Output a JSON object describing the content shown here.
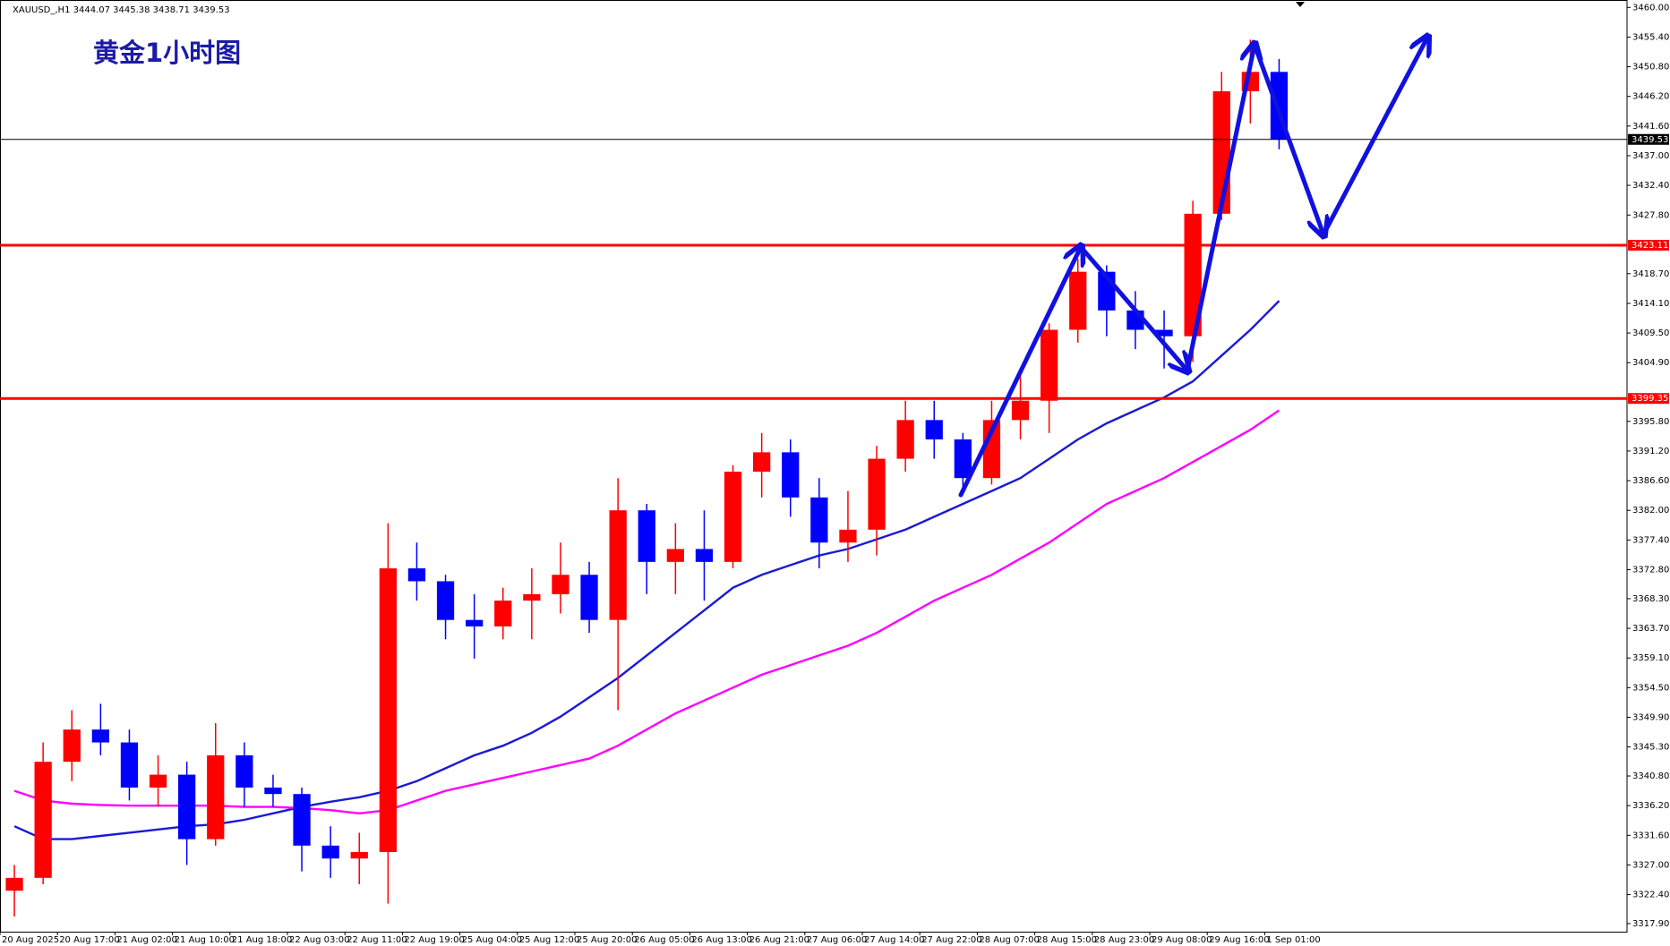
{
  "chart_data": {
    "type": "candlestick",
    "header": "XAUUSD_,H1  3444.07 3445.38 3438.71 3439.53",
    "title": "黄金1小时图",
    "categories": [
      "20 Aug 2025",
      null,
      "20 Aug 17:00",
      null,
      "21 Aug 02:00",
      null,
      "21 Aug 10:00",
      null,
      "21 Aug 18:00",
      null,
      "22 Aug 03:00",
      null,
      "22 Aug 11:00",
      null,
      "22 Aug 19:00",
      null,
      "25 Aug 04:00",
      null,
      "25 Aug 12:00",
      null,
      "25 Aug 20:00",
      null,
      "26 Aug 05:00",
      null,
      "26 Aug 13:00",
      null,
      "26 Aug 21:00",
      null,
      "27 Aug 06:00",
      null,
      "27 Aug 14:00",
      null,
      "27 Aug 22:00",
      null,
      "28 Aug 07:00",
      null,
      "28 Aug 15:00",
      null,
      "28 Aug 23:00",
      null,
      "29 Aug 08:00",
      null,
      "29 Aug 16:00",
      null,
      "1 Sep 01:00"
    ],
    "open": [
      3323,
      3325,
      3343,
      3348,
      3346,
      3339,
      3341,
      3331,
      3344,
      3339,
      3338,
      3330,
      3328,
      3329,
      3373,
      3371,
      3365,
      3364,
      3368,
      3369,
      3372,
      3365,
      3382,
      3374,
      3376,
      3374,
      3388,
      3391,
      3384,
      3377,
      3379,
      3390,
      3396,
      3393,
      3387,
      3396,
      3399,
      3410,
      3419,
      3413,
      3410,
      3409,
      3428,
      3447,
      3450
    ],
    "high": [
      3327,
      3346,
      3351,
      3352,
      3348,
      3344,
      3343,
      3349,
      3346,
      3341,
      3339,
      3333,
      3332,
      3380,
      3377,
      3372,
      3369,
      3370,
      3373,
      3377,
      3374,
      3387,
      3383,
      3380,
      3382,
      3389,
      3394,
      3393,
      3387,
      3385,
      3392,
      3399,
      3399,
      3394,
      3399,
      3404,
      3411,
      3421,
      3420,
      3416,
      3413,
      3430,
      3450,
      3455,
      3452
    ],
    "low": [
      3319,
      3324,
      3340,
      3344,
      3337,
      3336,
      3327,
      3330,
      3336,
      3336,
      3326,
      3325,
      3324,
      3321,
      3368,
      3362,
      3359,
      3362,
      3362,
      3366,
      3363,
      3351,
      3369,
      3369,
      3368,
      3373,
      3384,
      3381,
      3373,
      3374,
      3375,
      3388,
      3390,
      3385,
      3386,
      3393,
      3394,
      3408,
      3409,
      3407,
      3404,
      3405,
      3427,
      3442,
      3438
    ],
    "close": [
      3325,
      3343,
      3348,
      3346,
      3339,
      3341,
      3331,
      3344,
      3339,
      3338,
      3330,
      3328,
      3329,
      3373,
      3371,
      3365,
      3364,
      3368,
      3369,
      3372,
      3365,
      3382,
      3374,
      3376,
      3374,
      3388,
      3391,
      3384,
      3377,
      3379,
      3390,
      3396,
      3393,
      3387,
      3396,
      3399,
      3410,
      3419,
      3413,
      3410,
      3409,
      3428,
      3447,
      3450,
      3439.53
    ],
    "up_color": "#ff0000",
    "down_color": "#0000ff",
    "moving_averages": [
      {
        "color": "#1a1ad6",
        "values": [
          3333,
          3331,
          3331,
          3331.5,
          3332,
          3332.5,
          3333,
          3333.3,
          3334,
          3335,
          3336,
          3336.8,
          3337.5,
          3338.5,
          3340,
          3342,
          3344,
          3345.5,
          3347.5,
          3350,
          3353,
          3356,
          3359.5,
          3363,
          3366.5,
          3370,
          3372,
          3373.5,
          3375,
          3376,
          3377.5,
          3379,
          3381,
          3383,
          3385,
          3387,
          3390,
          3393,
          3395.5,
          3397.5,
          3399.5,
          3402,
          3406,
          3410,
          3414.5
        ]
      },
      {
        "color": "#ff00ff",
        "values": [
          3338.5,
          3337,
          3336.5,
          3336.3,
          3336.2,
          3336.2,
          3336.2,
          3336.2,
          3336,
          3336,
          3335.8,
          3335.5,
          3335,
          3335.5,
          3337,
          3338.5,
          3339.5,
          3340.5,
          3341.5,
          3342.5,
          3343.5,
          3345.5,
          3348,
          3350.5,
          3352.5,
          3354.5,
          3356.5,
          3358,
          3359.5,
          3361,
          3363,
          3365.5,
          3368,
          3370,
          3372,
          3374.5,
          3377,
          3380,
          3383,
          3385,
          3387,
          3389.5,
          3392,
          3394.5,
          3397.5
        ]
      }
    ],
    "hlines": [
      {
        "value": 3439.53,
        "color": "#000000"
      },
      {
        "value": 3423.11,
        "color": "#ff0000"
      },
      {
        "value": 3399.35,
        "color": "#ff0000"
      }
    ],
    "ylim": [
      3316.65,
      3461.15
    ],
    "yticks": [
      {
        "value": 3460,
        "label": "3460.00"
      },
      {
        "value": 3455.4,
        "label": "3455.40"
      },
      {
        "value": 3450.8,
        "label": "3450.80"
      },
      {
        "value": 3446.2,
        "label": "3446.20"
      },
      {
        "value": 3441.6,
        "label": "3441.60"
      },
      {
        "value": 3437,
        "label": "3437.00"
      },
      {
        "value": 3432.4,
        "label": "3432.40"
      },
      {
        "value": 3427.8,
        "label": "3427.80"
      },
      {
        "value": 3418.7,
        "label": "3418.70"
      },
      {
        "value": 3414.1,
        "label": "3414.10"
      },
      {
        "value": 3409.5,
        "label": "3409.50"
      },
      {
        "value": 3404.9,
        "label": "3404.90"
      },
      {
        "value": 3395.8,
        "label": "3395.80"
      },
      {
        "value": 3391.2,
        "label": "3391.20"
      },
      {
        "value": 3386.6,
        "label": "3386.60"
      },
      {
        "value": 3382,
        "label": "3382.00"
      },
      {
        "value": 3377.4,
        "label": "3377.40"
      },
      {
        "value": 3372.8,
        "label": "3372.80"
      },
      {
        "value": 3368.3,
        "label": "3368.30"
      },
      {
        "value": 3363.7,
        "label": "3363.70"
      },
      {
        "value": 3359.1,
        "label": "3359.10"
      },
      {
        "value": 3354.5,
        "label": "3354.50"
      },
      {
        "value": 3349.9,
        "label": "3349.90"
      },
      {
        "value": 3345.3,
        "label": "3345.30"
      },
      {
        "value": 3340.8,
        "label": "3340.80"
      },
      {
        "value": 3336.2,
        "label": "3336.20"
      },
      {
        "value": 3331.6,
        "label": "3331.60"
      },
      {
        "value": 3327,
        "label": "3327.00"
      },
      {
        "value": 3322.4,
        "label": "3322.40"
      },
      {
        "value": 3317.9,
        "label": "3317.90"
      }
    ]
  }
}
